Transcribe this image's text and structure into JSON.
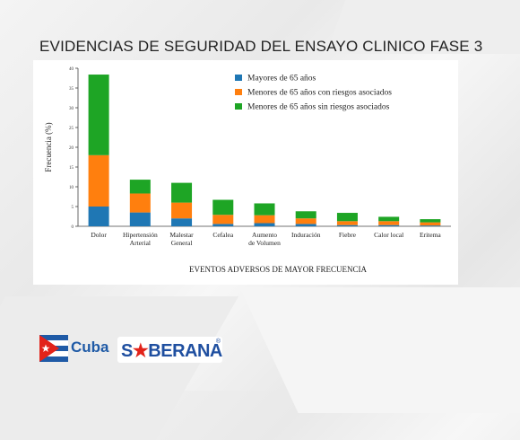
{
  "slide": {
    "title": "EVIDENCIAS DE SEGURIDAD DEL ENSAYO CLINICO FASE 3"
  },
  "logos": {
    "cuba": "Cuba",
    "soberana_pre": "S",
    "soberana_star": "★",
    "soberana_post": "BERANA",
    "registered": "®"
  },
  "chart_data": {
    "type": "bar",
    "stacked": true,
    "xlabel": "EVENTOS ADVERSOS DE MAYOR FRECUENCIA",
    "ylabel": "Frecuencia (%)",
    "ylim": [
      0,
      40
    ],
    "yticks": [
      0,
      5,
      10,
      15,
      20,
      25,
      30,
      35,
      40
    ],
    "grid": false,
    "legend_position": "top-right",
    "categories": [
      [
        "Dolor"
      ],
      [
        "Hipertensión",
        "Arterial"
      ],
      [
        "Malestar",
        "General"
      ],
      [
        "Cefalea"
      ],
      [
        "Aumento",
        "de Volumen"
      ],
      [
        "Induración"
      ],
      [
        "Fiebre"
      ],
      [
        "Calor local"
      ],
      [
        "Eritema"
      ]
    ],
    "series": [
      {
        "name": "Mayores de 65 años",
        "color": "#1f77b4",
        "values": [
          5.0,
          3.5,
          2.0,
          0.6,
          0.8,
          0.6,
          0.3,
          0.3,
          0.2
        ]
      },
      {
        "name": "Menores de 65 años con riesgos asociados",
        "color": "#ff7f0e",
        "values": [
          13.0,
          4.8,
          4.0,
          2.3,
          2.0,
          1.4,
          1.0,
          1.0,
          0.8
        ]
      },
      {
        "name": "Menores de 65 años sin riesgos asociados",
        "color": "#1ea525",
        "values": [
          20.4,
          3.5,
          5.0,
          3.8,
          3.0,
          1.8,
          2.1,
          1.1,
          0.8
        ]
      }
    ]
  }
}
